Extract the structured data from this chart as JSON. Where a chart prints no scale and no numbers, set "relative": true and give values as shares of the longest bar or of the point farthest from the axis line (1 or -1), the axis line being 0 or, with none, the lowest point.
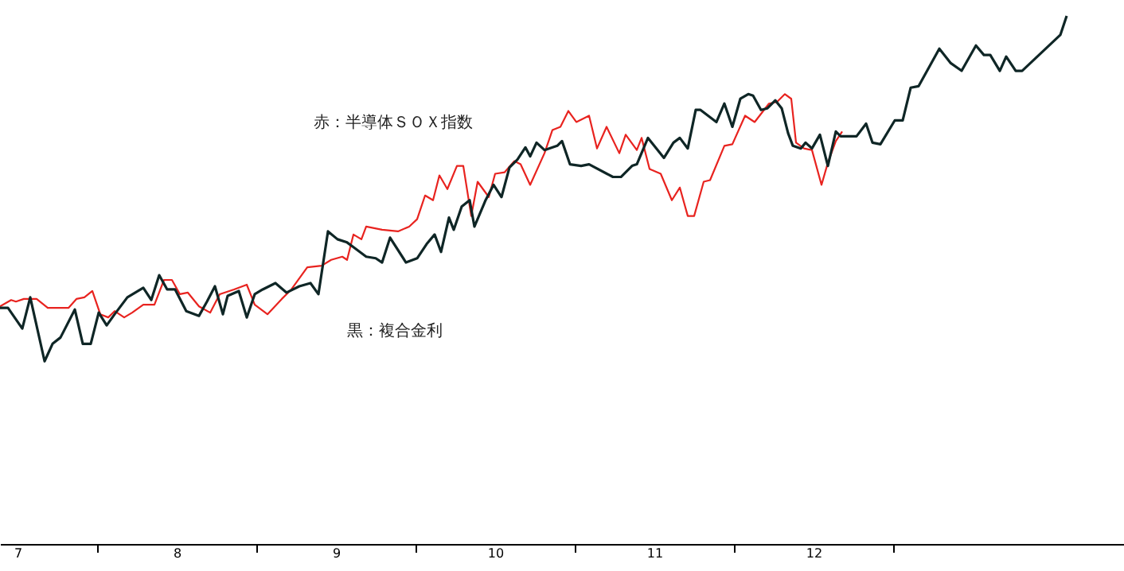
{
  "chart_data": {
    "type": "line",
    "relative": true,
    "grid": false,
    "marker": "none",
    "line_style": "solid",
    "xlim": [
      6.89,
      13.95
    ],
    "xticks": [
      7,
      {
        "value": 7.5,
        "label": null
      },
      8,
      {
        "value": 8.5,
        "label": null
      },
      9,
      {
        "value": 9.5,
        "label": null
      },
      10,
      {
        "value": 10.5,
        "label": null
      },
      11,
      {
        "value": 11.5,
        "label": null
      },
      12,
      {
        "value": 12.5,
        "label": null
      }
    ],
    "annotations": [
      "赤：半導体ＳＯＸ指数",
      "黒：複合金利"
    ],
    "series": [
      {
        "color": "#e8231f",
        "x": [
          6.89,
          6.96,
          6.99,
          7.04,
          7.12,
          7.19,
          7.32,
          7.37,
          7.42,
          7.47,
          7.52,
          7.57,
          7.61,
          7.67,
          7.72,
          7.79,
          7.86,
          7.92,
          7.97,
          8.02,
          8.07,
          8.14,
          8.21,
          8.27,
          8.36,
          8.44,
          8.49,
          8.57,
          8.66,
          8.72,
          8.82,
          8.91,
          8.97,
          9.04,
          9.07,
          9.11,
          9.16,
          9.19,
          9.29,
          9.39,
          9.46,
          9.51,
          9.56,
          9.61,
          9.65,
          9.7,
          9.76,
          9.8,
          9.85,
          9.89,
          9.96,
          10.0,
          10.06,
          10.12,
          10.16,
          10.22,
          10.31,
          10.36,
          10.41,
          10.46,
          10.51,
          10.59,
          10.64,
          10.7,
          10.78,
          10.82,
          10.89,
          10.92,
          10.97,
          11.04,
          11.11,
          11.16,
          11.21,
          11.25,
          11.31,
          11.35,
          11.44,
          11.49,
          11.57,
          11.63,
          11.72,
          11.77,
          11.82,
          11.86,
          11.89,
          11.94,
          11.99,
          12.05,
          12.09,
          12.14,
          12.18
        ],
        "values": [
          0.45,
          0.462,
          0.459,
          0.464,
          0.464,
          0.447,
          0.447,
          0.464,
          0.467,
          0.479,
          0.435,
          0.429,
          0.441,
          0.429,
          0.438,
          0.453,
          0.453,
          0.5,
          0.5,
          0.473,
          0.476,
          0.45,
          0.438,
          0.473,
          0.482,
          0.491,
          0.453,
          0.435,
          0.464,
          0.482,
          0.524,
          0.527,
          0.538,
          0.544,
          0.538,
          0.586,
          0.577,
          0.601,
          0.595,
          0.592,
          0.601,
          0.615,
          0.66,
          0.651,
          0.698,
          0.672,
          0.716,
          0.716,
          0.621,
          0.686,
          0.657,
          0.701,
          0.704,
          0.725,
          0.719,
          0.68,
          0.74,
          0.784,
          0.79,
          0.82,
          0.799,
          0.811,
          0.749,
          0.79,
          0.74,
          0.775,
          0.746,
          0.769,
          0.71,
          0.701,
          0.651,
          0.675,
          0.621,
          0.621,
          0.686,
          0.689,
          0.754,
          0.757,
          0.811,
          0.799,
          0.834,
          0.837,
          0.852,
          0.843,
          0.76,
          0.749,
          0.746,
          0.68,
          0.722,
          0.763,
          0.781
        ]
      },
      {
        "color": "#0f2626",
        "x": [
          6.89,
          6.94,
          7.03,
          7.08,
          7.17,
          7.22,
          7.27,
          7.36,
          7.41,
          7.46,
          7.51,
          7.56,
          7.61,
          7.69,
          7.79,
          7.84,
          7.89,
          7.94,
          7.99,
          8.06,
          8.14,
          8.19,
          8.24,
          8.29,
          8.32,
          8.39,
          8.44,
          8.49,
          8.54,
          8.62,
          8.69,
          8.77,
          8.84,
          8.89,
          8.95,
          9.01,
          9.07,
          9.11,
          9.19,
          9.25,
          9.29,
          9.34,
          9.44,
          9.51,
          9.57,
          9.62,
          9.66,
          9.71,
          9.74,
          9.79,
          9.84,
          9.87,
          9.94,
          9.99,
          10.04,
          10.09,
          10.14,
          10.19,
          10.22,
          10.26,
          10.31,
          10.39,
          10.42,
          10.47,
          10.54,
          10.59,
          10.74,
          10.79,
          10.86,
          10.89,
          10.96,
          11.06,
          11.12,
          11.16,
          11.21,
          11.26,
          11.29,
          11.39,
          11.44,
          11.49,
          11.54,
          11.59,
          11.62,
          11.67,
          11.71,
          11.76,
          11.8,
          11.84,
          11.87,
          11.92,
          11.95,
          11.99,
          12.04,
          12.09,
          12.14,
          12.17,
          12.27,
          12.33,
          12.37,
          12.42,
          12.51,
          12.56,
          12.61,
          12.66,
          12.79,
          12.86,
          12.93,
          13.02,
          13.07,
          13.11,
          13.17,
          13.21,
          13.27,
          13.31,
          13.55,
          13.59
        ],
        "values": [
          0.447,
          0.447,
          0.408,
          0.467,
          0.346,
          0.379,
          0.391,
          0.444,
          0.379,
          0.379,
          0.438,
          0.414,
          0.435,
          0.467,
          0.485,
          0.462,
          0.509,
          0.482,
          0.482,
          0.441,
          0.432,
          0.459,
          0.488,
          0.435,
          0.47,
          0.479,
          0.429,
          0.473,
          0.482,
          0.494,
          0.476,
          0.488,
          0.494,
          0.473,
          0.592,
          0.577,
          0.571,
          0.562,
          0.544,
          0.541,
          0.533,
          0.58,
          0.533,
          0.541,
          0.568,
          0.586,
          0.553,
          0.618,
          0.595,
          0.639,
          0.651,
          0.601,
          0.651,
          0.68,
          0.657,
          0.713,
          0.728,
          0.751,
          0.734,
          0.76,
          0.746,
          0.754,
          0.763,
          0.719,
          0.716,
          0.719,
          0.695,
          0.695,
          0.716,
          0.719,
          0.769,
          0.731,
          0.76,
          0.769,
          0.749,
          0.822,
          0.822,
          0.799,
          0.834,
          0.79,
          0.843,
          0.852,
          0.849,
          0.822,
          0.825,
          0.84,
          0.825,
          0.778,
          0.754,
          0.749,
          0.76,
          0.749,
          0.775,
          0.716,
          0.781,
          0.772,
          0.772,
          0.796,
          0.76,
          0.757,
          0.802,
          0.802,
          0.864,
          0.867,
          0.938,
          0.911,
          0.896,
          0.944,
          0.926,
          0.926,
          0.896,
          0.923,
          0.896,
          0.896,
          0.964,
          1.0
        ]
      }
    ]
  }
}
